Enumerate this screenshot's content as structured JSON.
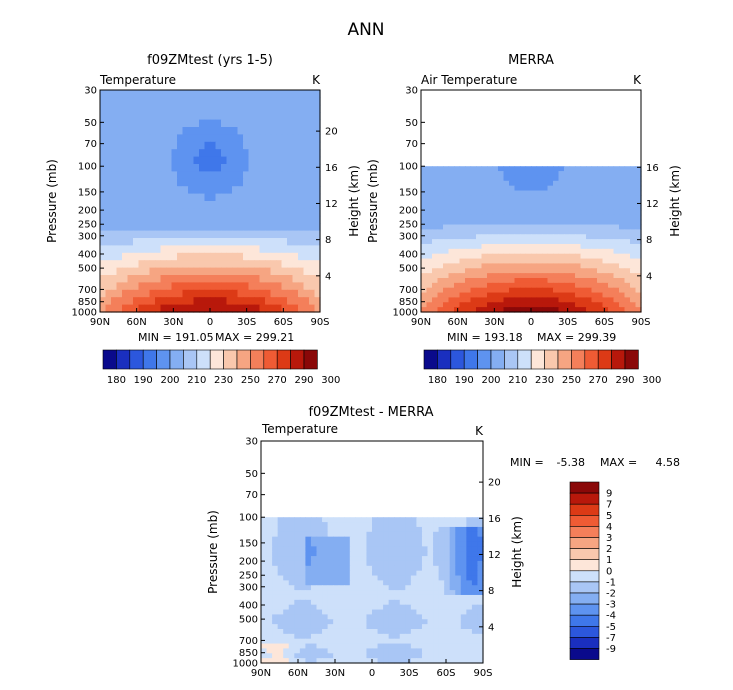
{
  "page": {
    "title": "ANN"
  },
  "colors": {
    "temp_scale": [
      "#0a0a8c",
      "#1a2fbf",
      "#2c57dd",
      "#3f77ea",
      "#5e93f0",
      "#84aef2",
      "#a9c6f5",
      "#cde0fa",
      "#fde6d9",
      "#f9c8ad",
      "#f6a582",
      "#f47f5a",
      "#ef5b34",
      "#dc3a16",
      "#b8180b",
      "#8a0808"
    ],
    "diff_scale": [
      "#8a0808",
      "#b8180b",
      "#dc3a16",
      "#ef5b34",
      "#f47f5a",
      "#f6a582",
      "#f9c8ad",
      "#fde6d9",
      "#cde0fa",
      "#a9c6f5",
      "#84aef2",
      "#5e93f0",
      "#3f77ea",
      "#2c57dd",
      "#1a2fbf",
      "#0a0a8c"
    ]
  },
  "chart_data": [
    {
      "type": "heatmap",
      "title": "f09ZMtest (yrs 1-5)",
      "left_label": "Temperature",
      "right_label": "K",
      "ylabel": "Pressure (mb)",
      "y2label": "Height (km)",
      "x_ticks": [
        "90N",
        "60N",
        "30N",
        "0",
        "30S",
        "60S",
        "90S"
      ],
      "p_ticks": [
        "30",
        "50",
        "70",
        "100",
        "150",
        "200",
        "250",
        "300",
        "400",
        "500",
        "700",
        "850",
        "1000"
      ],
      "height_ticks": [
        "20",
        "16",
        "12",
        "8",
        "4"
      ],
      "stats": {
        "min_text": "MIN = 191.05",
        "max_text": "MAX = 299.21"
      },
      "colorbar_labels": [
        "180",
        "190",
        "200",
        "210",
        "230",
        "250",
        "270",
        "290",
        "300"
      ],
      "data_top_p": 30,
      "field": "model"
    },
    {
      "type": "heatmap",
      "title": "MERRA",
      "left_label": "Air Temperature",
      "right_label": "K",
      "ylabel": "Pressure (mb)",
      "y2label": "Height (km)",
      "x_ticks": [
        "90N",
        "60N",
        "30N",
        "0",
        "30S",
        "60S",
        "90S"
      ],
      "p_ticks": [
        "30",
        "50",
        "70",
        "100",
        "150",
        "200",
        "250",
        "300",
        "400",
        "500",
        "700",
        "850",
        "1000"
      ],
      "height_ticks": [
        "16",
        "12",
        "8",
        "4"
      ],
      "stats": {
        "min_text": "MIN = 193.18",
        "max_text": "MAX = 299.39"
      },
      "colorbar_labels": [
        "180",
        "190",
        "200",
        "210",
        "230",
        "250",
        "270",
        "290",
        "300"
      ],
      "data_top_p": 100,
      "field": "merra"
    },
    {
      "type": "heatmap",
      "title": "f09ZMtest - MERRA",
      "left_label": "Temperature",
      "right_label": "K",
      "ylabel": "Pressure (mb)",
      "y2label": "Height (km)",
      "x_ticks": [
        "90N",
        "60N",
        "30N",
        "0",
        "30S",
        "60S",
        "90S"
      ],
      "p_ticks": [
        "30",
        "50",
        "70",
        "100",
        "150",
        "200",
        "250",
        "300",
        "400",
        "500",
        "700",
        "850",
        "1000"
      ],
      "height_ticks": [
        "20",
        "16",
        "12",
        "8",
        "4"
      ],
      "stats": {
        "min_label": "MIN =",
        "min_value": "-5.38",
        "max_label": "MAX =",
        "max_value": "4.58"
      },
      "colorbar_labels": [
        "9",
        "7",
        "5",
        "4",
        "3",
        "2",
        "1",
        "0",
        "-1",
        "-2",
        "-3",
        "-4",
        "-5",
        "-7",
        "-9"
      ],
      "data_top_p": 100,
      "field": "diff"
    }
  ]
}
